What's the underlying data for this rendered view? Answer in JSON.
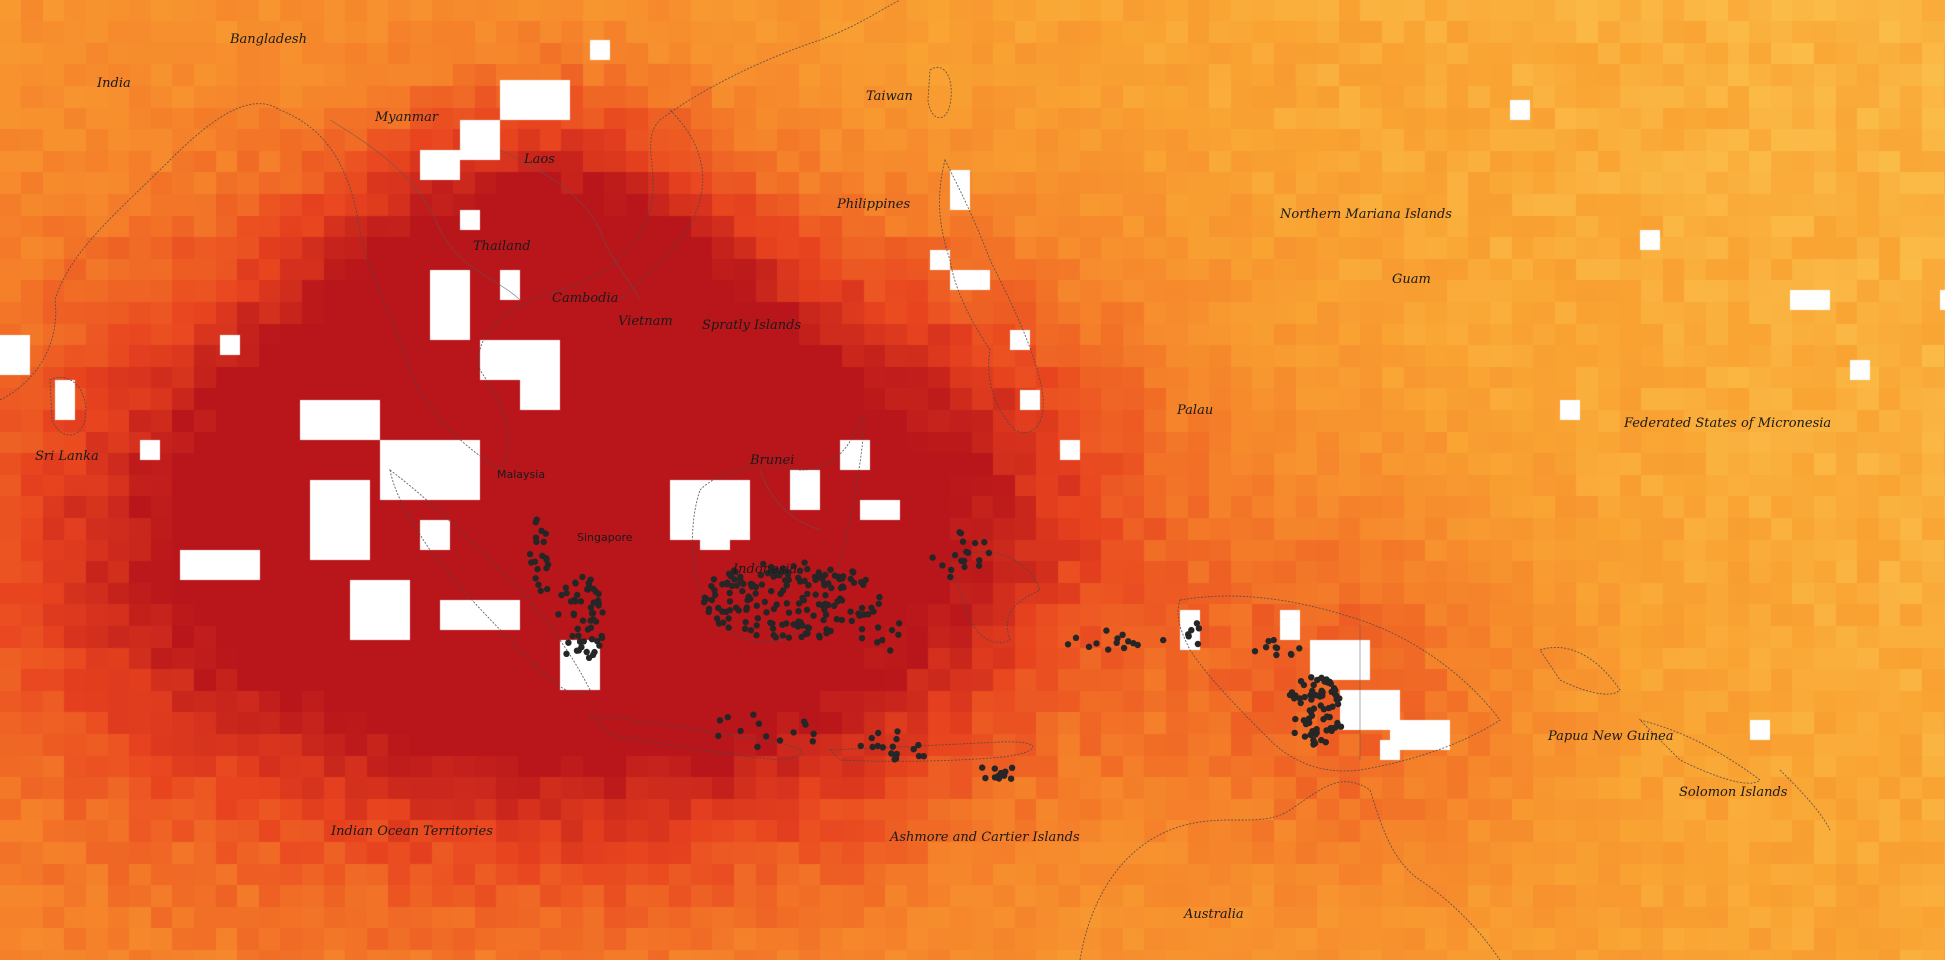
{
  "map": {
    "colors": {
      "light": "#fdd35c",
      "mid": "#f9a433",
      "orange": "#f5812a",
      "red": "#e8441f",
      "darkred": "#b9161b",
      "nodata": "#ffffff",
      "hotspot": "#262626"
    },
    "labels": {
      "bangladesh": "Bangladesh",
      "india": "India",
      "myanmar": "Myanmar",
      "laos": "Laos",
      "taiwan": "Taiwan",
      "philippines": "Philippines",
      "northern_mariana": "Northern Mariana Islands",
      "guam": "Guam",
      "thailand": "Thailand",
      "cambodia": "Cambodia",
      "vietnam": "Vietnam",
      "spratly": "Spratly Islands",
      "palau": "Palau",
      "micronesia": "Federated States of Micronesia",
      "sri_lanka": "Sri Lanka",
      "malaysia": "Malaysia",
      "brunei": "Brunei",
      "singapore": "Singapore",
      "indonesia": "Indonesia",
      "papua_new_guinea": "Papua New Guinea",
      "solomon": "Solomon Islands",
      "indian_ocean_territories": "Indian Ocean Territories",
      "ashmore_cartier": "Ashmore and Cartier Islands",
      "australia": "Australia"
    }
  }
}
